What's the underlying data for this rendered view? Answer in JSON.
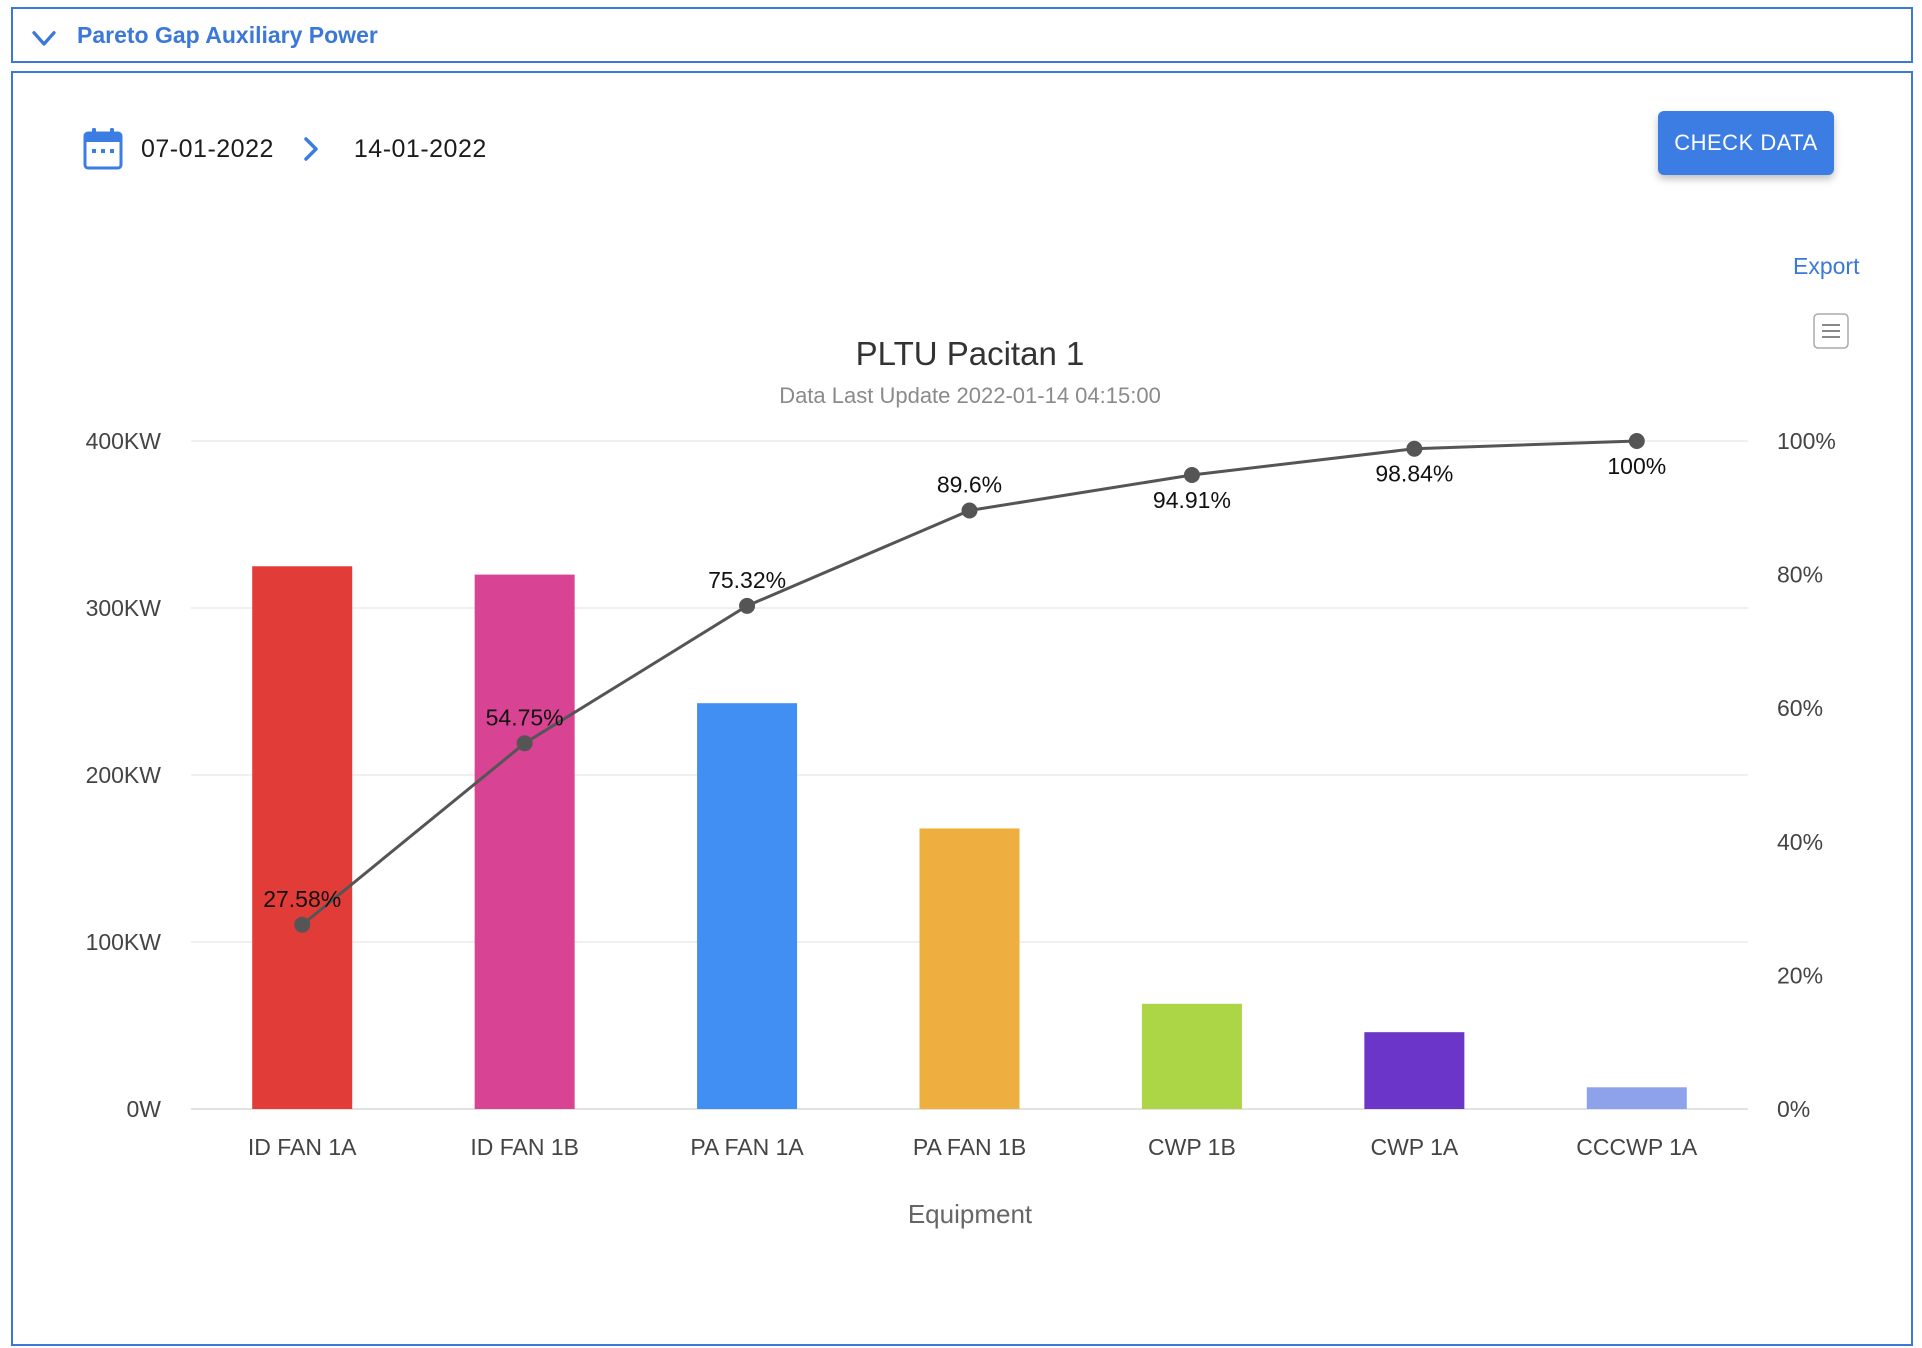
{
  "panel": {
    "title": "Pareto Gap Auxiliary Power"
  },
  "date_range": {
    "start": "07-01-2022",
    "end": "14-01-2022"
  },
  "actions": {
    "check_data": "CHECK DATA",
    "export": "Export"
  },
  "icons": {
    "collapse": "chevron-down-icon",
    "calendar": "calendar-icon",
    "range": "chevron-right-icon",
    "menu": "hamburger-menu-icon"
  },
  "chart_data": {
    "type": "bar",
    "title": "PLTU Pacitan 1",
    "subtitle": "Data Last Update 2022-01-14 04:15:00",
    "xlabel": "Equipment",
    "ylabel": "",
    "categories": [
      "ID FAN 1A",
      "ID FAN 1B",
      "PA FAN 1A",
      "PA FAN 1B",
      "CWP 1B",
      "CWP 1A",
      "CCCWP 1A"
    ],
    "values": [
      325,
      320,
      243,
      168,
      63,
      46,
      13
    ],
    "colors": [
      "#e23c39",
      "#d94393",
      "#418ff2",
      "#eeae40",
      "#acd645",
      "#6c35c9",
      "#8ea2ec"
    ],
    "ylim": [
      0,
      400
    ],
    "y_ticks": [
      {
        "value": 0,
        "label": "0W"
      },
      {
        "value": 100,
        "label": "100KW"
      },
      {
        "value": 200,
        "label": "200KW"
      },
      {
        "value": 300,
        "label": "300KW"
      },
      {
        "value": 400,
        "label": "400KW"
      }
    ],
    "y2lim": [
      0,
      100
    ],
    "y2_ticks": [
      {
        "value": 0,
        "label": "0%"
      },
      {
        "value": 20,
        "label": "20%"
      },
      {
        "value": 40,
        "label": "40%"
      },
      {
        "value": 60,
        "label": "60%"
      },
      {
        "value": 80,
        "label": "80%"
      },
      {
        "value": 100,
        "label": "100%"
      }
    ],
    "cumulative": {
      "type": "line",
      "values": [
        27.58,
        54.75,
        75.32,
        89.6,
        94.91,
        98.84,
        100
      ],
      "labels": [
        "27.58%",
        "54.75%",
        "75.32%",
        "89.6%",
        "94.91%",
        "98.84%",
        "100%"
      ],
      "color": "#555555"
    },
    "grid": true,
    "legend": "none"
  }
}
